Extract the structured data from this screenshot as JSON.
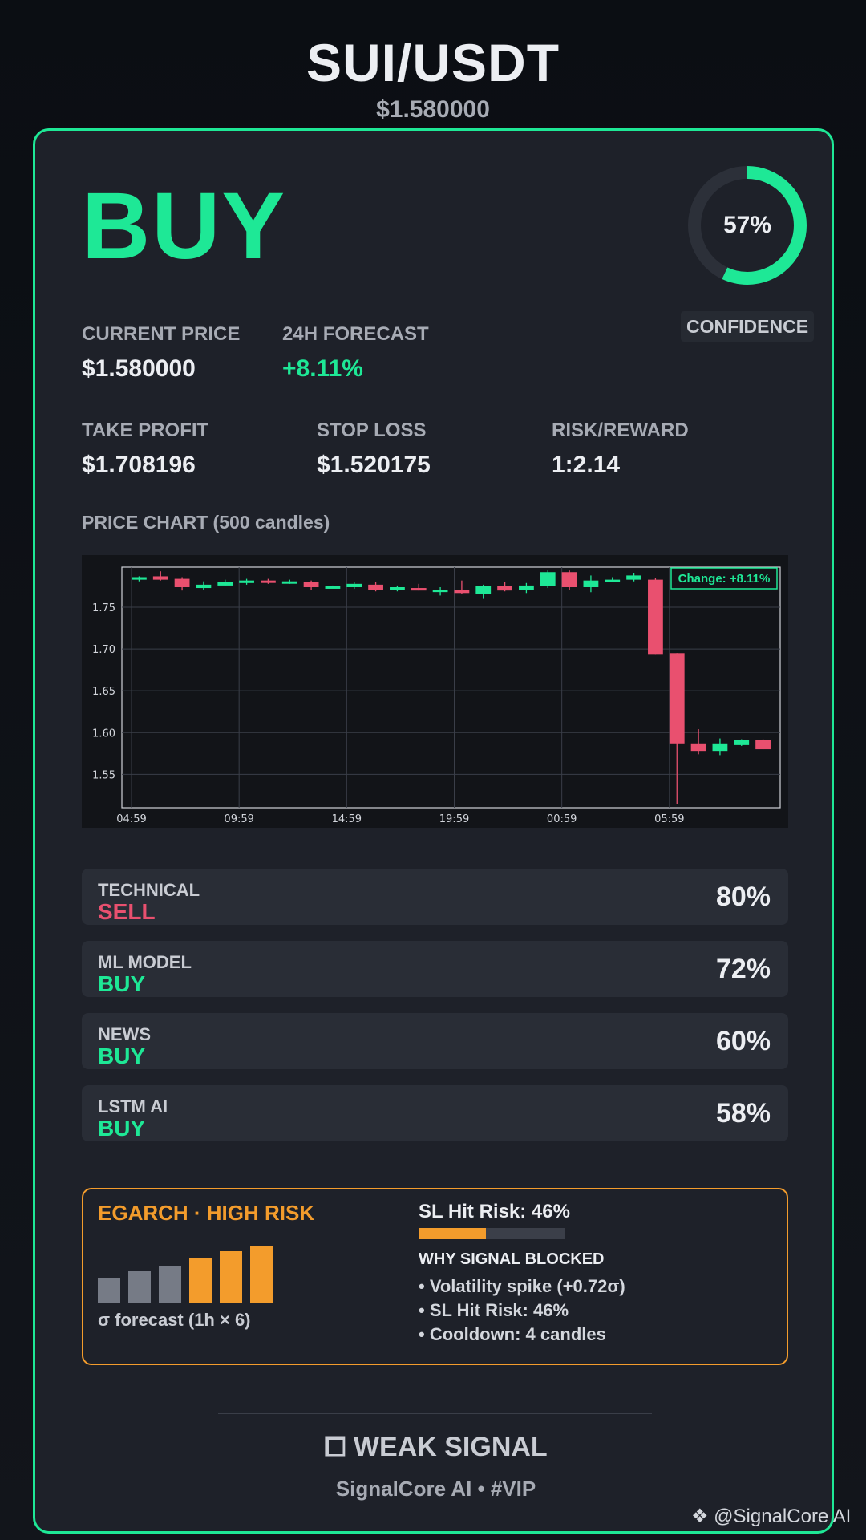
{
  "header": {
    "pair": "SUI/USDT",
    "price": "$1.580000"
  },
  "signal": {
    "action": "BUY",
    "confidence_value": 57,
    "confidence_text": "57%",
    "confidence_label": "CONFIDENCE"
  },
  "metrics": {
    "current_price": {
      "label": "CURRENT PRICE",
      "value": "$1.580000"
    },
    "forecast_24h": {
      "label": "24H FORECAST",
      "value": "+8.11%"
    },
    "take_profit": {
      "label": "TAKE PROFIT",
      "value": "$1.708196"
    },
    "stop_loss": {
      "label": "STOP LOSS",
      "value": "$1.520175"
    },
    "risk_reward": {
      "label": "RISK/REWARD",
      "value": "1:2.14"
    }
  },
  "chart_section_title": "PRICE CHART (500 candles)",
  "chart_data": {
    "type": "candlestick",
    "annotation": "Change: +8.11%",
    "y_ticks": [
      "1.75",
      "1.70",
      "1.65",
      "1.60",
      "1.55"
    ],
    "x_ticks": [
      "04:59",
      "09:59",
      "14:59",
      "19:59",
      "00:59",
      "05:59"
    ],
    "ylim": [
      1.51,
      1.798
    ],
    "grid": true,
    "up_color": "#1ee896",
    "down_color": "#e9506f",
    "candles": [
      {
        "o": 1.783,
        "h": 1.787,
        "l": 1.781,
        "c": 1.786
      },
      {
        "o": 1.787,
        "h": 1.793,
        "l": 1.782,
        "c": 1.783
      },
      {
        "o": 1.784,
        "h": 1.786,
        "l": 1.77,
        "c": 1.774
      },
      {
        "o": 1.773,
        "h": 1.781,
        "l": 1.771,
        "c": 1.777
      },
      {
        "o": 1.776,
        "h": 1.783,
        "l": 1.775,
        "c": 1.78
      },
      {
        "o": 1.779,
        "h": 1.784,
        "l": 1.777,
        "c": 1.782
      },
      {
        "o": 1.782,
        "h": 1.784,
        "l": 1.778,
        "c": 1.78
      },
      {
        "o": 1.779,
        "h": 1.783,
        "l": 1.778,
        "c": 1.781
      },
      {
        "o": 1.78,
        "h": 1.782,
        "l": 1.771,
        "c": 1.774
      },
      {
        "o": 1.774,
        "h": 1.776,
        "l": 1.773,
        "c": 1.775
      },
      {
        "o": 1.774,
        "h": 1.78,
        "l": 1.772,
        "c": 1.778
      },
      {
        "o": 1.777,
        "h": 1.78,
        "l": 1.769,
        "c": 1.771
      },
      {
        "o": 1.772,
        "h": 1.776,
        "l": 1.769,
        "c": 1.774
      },
      {
        "o": 1.773,
        "h": 1.778,
        "l": 1.77,
        "c": 1.77
      },
      {
        "o": 1.769,
        "h": 1.774,
        "l": 1.764,
        "c": 1.771
      },
      {
        "o": 1.771,
        "h": 1.782,
        "l": 1.766,
        "c": 1.767
      },
      {
        "o": 1.766,
        "h": 1.777,
        "l": 1.76,
        "c": 1.775
      },
      {
        "o": 1.775,
        "h": 1.78,
        "l": 1.769,
        "c": 1.77
      },
      {
        "o": 1.771,
        "h": 1.779,
        "l": 1.767,
        "c": 1.776
      },
      {
        "o": 1.775,
        "h": 1.794,
        "l": 1.773,
        "c": 1.792
      },
      {
        "o": 1.792,
        "h": 1.794,
        "l": 1.771,
        "c": 1.774
      },
      {
        "o": 1.774,
        "h": 1.788,
        "l": 1.768,
        "c": 1.782
      },
      {
        "o": 1.782,
        "h": 1.786,
        "l": 1.781,
        "c": 1.783
      },
      {
        "o": 1.783,
        "h": 1.791,
        "l": 1.781,
        "c": 1.788
      },
      {
        "o": 1.783,
        "h": 1.785,
        "l": 1.694,
        "c": 1.694
      },
      {
        "o": 1.695,
        "h": 1.695,
        "l": 1.514,
        "c": 1.587
      },
      {
        "o": 1.587,
        "h": 1.604,
        "l": 1.574,
        "c": 1.578
      },
      {
        "o": 1.578,
        "h": 1.593,
        "l": 1.573,
        "c": 1.587
      },
      {
        "o": 1.585,
        "h": 1.592,
        "l": 1.584,
        "c": 1.591
      },
      {
        "o": 1.591,
        "h": 1.592,
        "l": 1.58,
        "c": 1.58
      }
    ]
  },
  "components": [
    {
      "label": "TECHNICAL",
      "signal": "SELL",
      "kind": "sell",
      "pct": "80%"
    },
    {
      "label": "ML MODEL",
      "signal": "BUY",
      "kind": "buy",
      "pct": "72%"
    },
    {
      "label": "NEWS",
      "signal": "BUY",
      "kind": "buy",
      "pct": "60%"
    },
    {
      "label": "LSTM AI",
      "signal": "BUY",
      "kind": "buy",
      "pct": "58%"
    }
  ],
  "risk": {
    "title": "EGARCH · HIGH RISK",
    "sigma_label": "σ forecast (1h × 6)",
    "sigma_forecast": [
      0.45,
      0.55,
      0.65,
      0.78,
      0.9,
      1.0
    ],
    "sigma_high_from_index": 3,
    "sl_hit_label": "SL Hit Risk: 46%",
    "sl_hit_value": 0.46,
    "why_title": "WHY SIGNAL BLOCKED",
    "reasons": [
      "• Volatility spike (+0.72σ)",
      "• SL Hit Risk: 46%",
      "• Cooldown: 4 candles"
    ]
  },
  "footer": {
    "strength": "⧠ WEAK SIGNAL",
    "brand": "SignalCore AI • #VIP"
  },
  "watermark": "❖ @SignalCore AI"
}
